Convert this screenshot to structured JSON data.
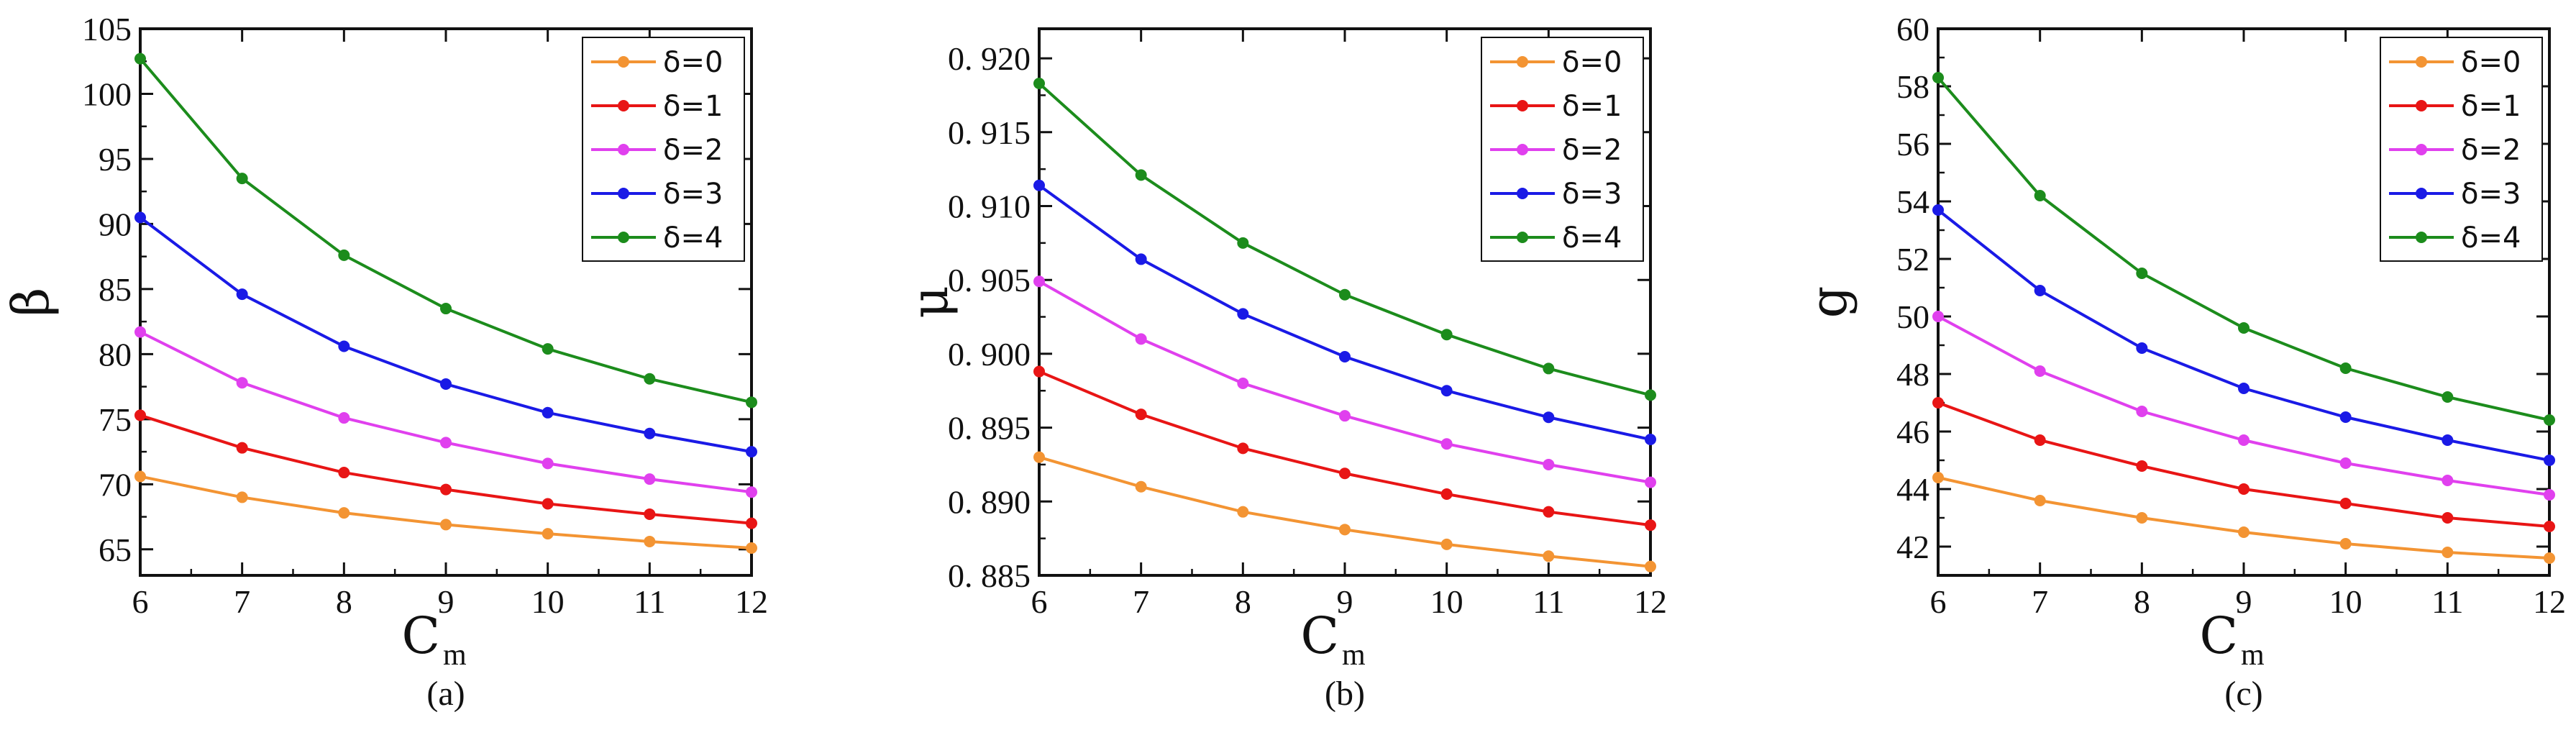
{
  "chart_data": [
    {
      "type": "line",
      "panel_label": "(a)",
      "ylabel": "β",
      "xlabel": "C",
      "xlabel_sub": "m",
      "xlim": [
        6,
        12
      ],
      "ylim": [
        63,
        105
      ],
      "xticks": [
        "6",
        "7",
        "8",
        "9",
        "10",
        "11",
        "12"
      ],
      "yticks": [
        "65",
        "70",
        "75",
        "80",
        "85",
        "90",
        "95",
        "100",
        "105"
      ],
      "legend_position": "top-right",
      "x": [
        6,
        7,
        8,
        9,
        10,
        11,
        12
      ],
      "series": [
        {
          "name": "δ=0",
          "color": "#f39433",
          "values": [
            70.6,
            69.0,
            67.8,
            66.9,
            66.2,
            65.6,
            65.1
          ]
        },
        {
          "name": "δ=1",
          "color": "#e81515",
          "values": [
            75.3,
            72.8,
            70.9,
            69.6,
            68.5,
            67.7,
            67.0
          ]
        },
        {
          "name": "δ=2",
          "color": "#e040ee",
          "values": [
            81.7,
            77.8,
            75.1,
            73.2,
            71.6,
            70.4,
            69.4
          ]
        },
        {
          "name": "δ=3",
          "color": "#1a1ae6",
          "values": [
            90.5,
            84.6,
            80.6,
            77.7,
            75.5,
            73.9,
            72.5
          ]
        },
        {
          "name": "δ=4",
          "color": "#1c8c1c",
          "values": [
            102.7,
            93.5,
            87.6,
            83.5,
            80.4,
            78.1,
            76.3
          ]
        }
      ]
    },
    {
      "type": "line",
      "panel_label": "(b)",
      "ylabel": "μ",
      "xlabel": "C",
      "xlabel_sub": "m",
      "xlim": [
        6,
        12
      ],
      "ylim": [
        0.885,
        0.922
      ],
      "xticks": [
        "6",
        "7",
        "8",
        "9",
        "10",
        "11",
        "12"
      ],
      "yticks": [
        "0. 885",
        "0. 890",
        "0. 895",
        "0. 900",
        "0. 905",
        "0. 910",
        "0. 915",
        "0. 920"
      ],
      "legend_position": "top-right",
      "x": [
        6,
        7,
        8,
        9,
        10,
        11,
        12
      ],
      "series": [
        {
          "name": "δ=0",
          "color": "#f39433",
          "values": [
            0.893,
            0.891,
            0.8893,
            0.8881,
            0.8871,
            0.8863,
            0.8856
          ]
        },
        {
          "name": "δ=1",
          "color": "#e81515",
          "values": [
            0.8988,
            0.8959,
            0.8936,
            0.8919,
            0.8905,
            0.8893,
            0.8884
          ]
        },
        {
          "name": "δ=2",
          "color": "#e040ee",
          "values": [
            0.9049,
            0.901,
            0.898,
            0.8958,
            0.8939,
            0.8925,
            0.8913
          ]
        },
        {
          "name": "δ=3",
          "color": "#1a1ae6",
          "values": [
            0.9114,
            0.9064,
            0.9027,
            0.8998,
            0.8975,
            0.8957,
            0.8942
          ]
        },
        {
          "name": "δ=4",
          "color": "#1c8c1c",
          "values": [
            0.9183,
            0.9121,
            0.9075,
            0.904,
            0.9013,
            0.899,
            0.8972
          ]
        }
      ]
    },
    {
      "type": "line",
      "panel_label": "(c)",
      "ylabel": "g",
      "xlabel": "C",
      "xlabel_sub": "m",
      "xlim": [
        6,
        12
      ],
      "ylim": [
        41,
        60
      ],
      "xticks": [
        "6",
        "7",
        "8",
        "9",
        "10",
        "11",
        "12"
      ],
      "yticks": [
        "42",
        "44",
        "46",
        "48",
        "50",
        "52",
        "54",
        "56",
        "58",
        "60"
      ],
      "legend_position": "top-right",
      "x": [
        6,
        7,
        8,
        9,
        10,
        11,
        12
      ],
      "series": [
        {
          "name": "δ=0",
          "color": "#f39433",
          "values": [
            44.4,
            43.6,
            43.0,
            42.5,
            42.1,
            41.8,
            41.6
          ]
        },
        {
          "name": "δ=1",
          "color": "#e81515",
          "values": [
            47.0,
            45.7,
            44.8,
            44.0,
            43.5,
            43.0,
            42.7
          ]
        },
        {
          "name": "δ=2",
          "color": "#e040ee",
          "values": [
            50.0,
            48.1,
            46.7,
            45.7,
            44.9,
            44.3,
            43.8
          ]
        },
        {
          "name": "δ=3",
          "color": "#1a1ae6",
          "values": [
            53.7,
            50.9,
            48.9,
            47.5,
            46.5,
            45.7,
            45.0
          ]
        },
        {
          "name": "δ=4",
          "color": "#1c8c1c",
          "values": [
            58.3,
            54.2,
            51.5,
            49.6,
            48.2,
            47.2,
            46.4
          ]
        }
      ]
    }
  ]
}
